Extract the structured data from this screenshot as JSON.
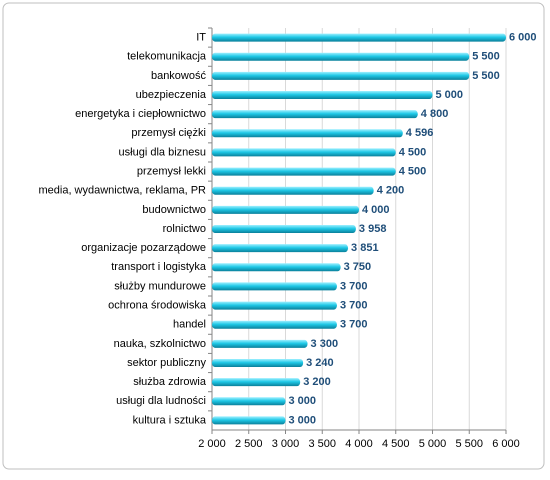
{
  "chart_data": {
    "type": "bar",
    "orientation": "horizontal",
    "categories": [
      "IT",
      "telekomunikacja",
      "bankowość",
      "ubezpieczenia",
      "energetyka i ciepłownictwo",
      "przemysł ciężki",
      "usługi dla biznesu",
      "przemysł lekki",
      "media, wydawnictwa, reklama, PR",
      "budownictwo",
      "rolnictwo",
      "organizacje pozarządowe",
      "transport i logistyka",
      "służby mundurowe",
      "ochrona środowiska",
      "handel",
      "nauka, szkolnictwo",
      "sektor publiczny",
      "służba zdrowia",
      "usługi dla ludności",
      "kultura i sztuka"
    ],
    "values": [
      6000,
      5500,
      5500,
      5000,
      4800,
      4596,
      4500,
      4500,
      4200,
      4000,
      3958,
      3851,
      3750,
      3700,
      3700,
      3700,
      3300,
      3240,
      3200,
      3000,
      3000
    ],
    "value_labels": [
      "6 000",
      "5 500",
      "5 500",
      "5 000",
      "4 800",
      "4 596",
      "4 500",
      "4 500",
      "4 200",
      "4 000",
      "3 958",
      "3 851",
      "3 750",
      "3 700",
      "3 700",
      "3 700",
      "3 300",
      "3 240",
      "3 200",
      "3 000",
      "3 000"
    ],
    "color": "#1ec8e6",
    "xlim": [
      2000,
      6000
    ],
    "xticks": [
      {
        "value": 2000,
        "label": "2 000"
      },
      {
        "value": 2500,
        "label": "2 500"
      },
      {
        "value": 3000,
        "label": "3 000"
      },
      {
        "value": 3500,
        "label": "3 500"
      },
      {
        "value": 4000,
        "label": "4 000"
      },
      {
        "value": 4500,
        "label": "4 500"
      },
      {
        "value": 5000,
        "label": "5 000"
      },
      {
        "value": 5500,
        "label": "5 500"
      },
      {
        "value": 6000,
        "label": "6 000"
      }
    ],
    "grid": true
  }
}
